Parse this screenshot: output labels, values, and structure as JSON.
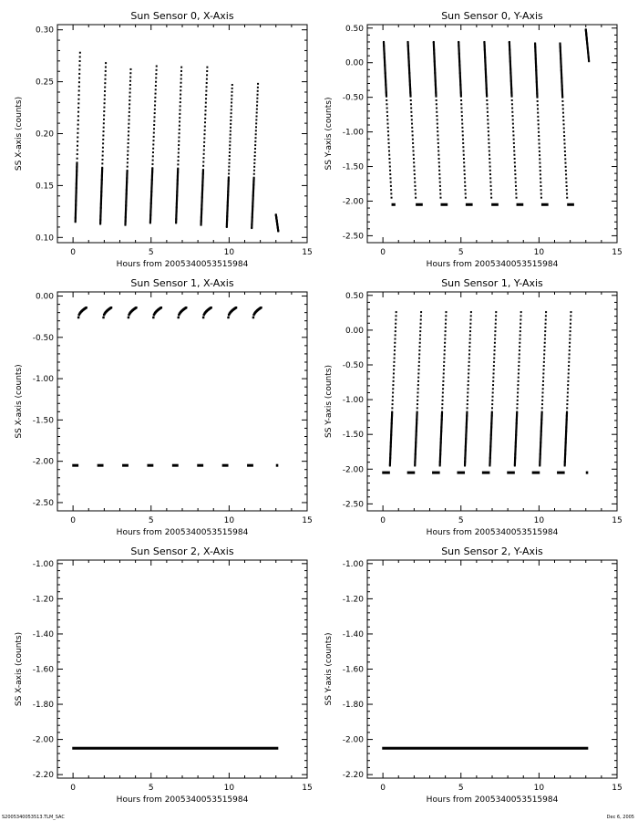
{
  "footer": {
    "left": "S2005340053513.TLM_SAC",
    "right": "Dec  6, 2005"
  },
  "colors": {
    "data": "#000000",
    "axes": "#000000",
    "background": "#ffffff"
  },
  "chart_data": [
    {
      "type": "scatter",
      "title": "Sun Sensor 0, X-Axis",
      "xlabel": "Hours from 2005340053515984",
      "ylabel": "SS X-axis (counts)",
      "xlim": [
        -1,
        15
      ],
      "ylim": [
        0.095,
        0.305
      ],
      "xticks": [
        0,
        5,
        10,
        15
      ],
      "yticks": [
        0.1,
        0.15,
        0.2,
        0.25,
        0.3
      ],
      "ytick_labels": [
        "0.10",
        "0.15",
        "0.20",
        "0.25",
        "0.30"
      ],
      "grid": false,
      "pattern": "sawtooth-rising",
      "segments": [
        {
          "x0": 0.15,
          "x1": 0.45,
          "y0": 0.115,
          "y1": 0.278
        },
        {
          "x0": 1.75,
          "x1": 2.1,
          "y0": 0.113,
          "y1": 0.268
        },
        {
          "x0": 3.35,
          "x1": 3.7,
          "y0": 0.112,
          "y1": 0.262
        },
        {
          "x0": 4.95,
          "x1": 5.35,
          "y0": 0.114,
          "y1": 0.265
        },
        {
          "x0": 6.6,
          "x1": 6.95,
          "y0": 0.114,
          "y1": 0.264
        },
        {
          "x0": 8.2,
          "x1": 8.6,
          "y0": 0.112,
          "y1": 0.264
        },
        {
          "x0": 9.85,
          "x1": 10.2,
          "y0": 0.11,
          "y1": 0.247
        },
        {
          "x0": 11.45,
          "x1": 11.85,
          "y0": 0.109,
          "y1": 0.248
        },
        {
          "x0": 13.0,
          "x1": 13.15,
          "y0": 0.122,
          "y1": 0.106
        }
      ]
    },
    {
      "type": "scatter",
      "title": "Sun Sensor 0, Y-Axis",
      "xlabel": "Hours from 2005340053515984",
      "ylabel": "SS Y-axis (counts)",
      "xlim": [
        -1,
        15
      ],
      "ylim": [
        -2.6,
        0.55
      ],
      "xticks": [
        0,
        5,
        10,
        15
      ],
      "yticks": [
        -2.5,
        -2.0,
        -1.5,
        -1.0,
        -0.5,
        0.0,
        0.5
      ],
      "ytick_labels": [
        "-2.50",
        "-2.00",
        "-1.50",
        "-1.00",
        "-0.50",
        "0.00",
        "0.50"
      ],
      "grid": false,
      "pattern": "sawtooth-falling",
      "floor": -2.05,
      "segments": [
        {
          "x0": 0.05,
          "x1": 0.55,
          "y0": 0.3,
          "y1": -1.95,
          "fx0": 0.55,
          "fx1": 0.8
        },
        {
          "x0": 1.6,
          "x1": 2.1,
          "y0": 0.3,
          "y1": -1.95,
          "fx0": 2.1,
          "fx1": 2.55
        },
        {
          "x0": 3.25,
          "x1": 3.7,
          "y0": 0.3,
          "y1": -1.95,
          "fx0": 3.7,
          "fx1": 4.15
        },
        {
          "x0": 4.85,
          "x1": 5.3,
          "y0": 0.3,
          "y1": -1.95,
          "fx0": 5.3,
          "fx1": 5.75
        },
        {
          "x0": 6.5,
          "x1": 6.95,
          "y0": 0.3,
          "y1": -1.95,
          "fx0": 6.95,
          "fx1": 7.4
        },
        {
          "x0": 8.1,
          "x1": 8.55,
          "y0": 0.3,
          "y1": -1.95,
          "fx0": 8.55,
          "fx1": 9.0
        },
        {
          "x0": 9.75,
          "x1": 10.15,
          "y0": 0.28,
          "y1": -1.95,
          "fx0": 10.15,
          "fx1": 10.6
        },
        {
          "x0": 11.35,
          "x1": 11.8,
          "y0": 0.28,
          "y1": -1.95,
          "fx0": 11.8,
          "fx1": 12.25
        },
        {
          "x0": 13.0,
          "x1": 13.2,
          "y0": 0.48,
          "y1": 0.02
        }
      ]
    },
    {
      "type": "scatter",
      "title": "Sun Sensor 1, X-Axis",
      "xlabel": "Hours from 2005340053515984",
      "ylabel": "SS X-axis (counts)",
      "xlim": [
        -1,
        15
      ],
      "ylim": [
        -2.6,
        0.05
      ],
      "xticks": [
        0,
        5,
        10,
        15
      ],
      "yticks": [
        -2.5,
        -2.0,
        -1.5,
        -1.0,
        -0.5,
        0.0
      ],
      "ytick_labels": [
        "-2.50",
        "-2.00",
        "-1.50",
        "-1.00",
        "-0.50",
        "0.00"
      ],
      "grid": false,
      "pattern": "arcs-with-floor",
      "floor": -2.05,
      "floor_segments": [
        [
          -0.05,
          0.35
        ],
        [
          1.55,
          1.95
        ],
        [
          3.15,
          3.55
        ],
        [
          4.75,
          5.15
        ],
        [
          6.35,
          6.75
        ],
        [
          7.95,
          8.35
        ],
        [
          9.55,
          9.95
        ],
        [
          11.15,
          11.55
        ],
        [
          13.0,
          13.15
        ]
      ],
      "segments": [
        {
          "x0": 0.35,
          "x1": 0.85,
          "y0": -0.26,
          "y1": -0.14
        },
        {
          "x0": 1.95,
          "x1": 2.45,
          "y0": -0.26,
          "y1": -0.14
        },
        {
          "x0": 3.55,
          "x1": 4.05,
          "y0": -0.26,
          "y1": -0.14
        },
        {
          "x0": 5.15,
          "x1": 5.65,
          "y0": -0.26,
          "y1": -0.14
        },
        {
          "x0": 6.75,
          "x1": 7.25,
          "y0": -0.26,
          "y1": -0.14
        },
        {
          "x0": 8.35,
          "x1": 8.85,
          "y0": -0.26,
          "y1": -0.14
        },
        {
          "x0": 9.95,
          "x1": 10.45,
          "y0": -0.26,
          "y1": -0.14
        },
        {
          "x0": 11.55,
          "x1": 12.05,
          "y0": -0.26,
          "y1": -0.14
        }
      ]
    },
    {
      "type": "scatter",
      "title": "Sun Sensor 1, Y-Axis",
      "xlabel": "Hours from 2005340053515984",
      "ylabel": "SS Y-axis (counts)",
      "xlim": [
        -1,
        15
      ],
      "ylim": [
        -2.6,
        0.55
      ],
      "xticks": [
        0,
        5,
        10,
        15
      ],
      "yticks": [
        -2.5,
        -2.0,
        -1.5,
        -1.0,
        -0.5,
        0.0,
        0.5
      ],
      "ytick_labels": [
        "-2.50",
        "-2.00",
        "-1.50",
        "-1.00",
        "-0.50",
        "0.00",
        "0.50"
      ],
      "grid": false,
      "pattern": "sawtooth-rising",
      "floor": -2.05,
      "floor_segments": [
        [
          -0.05,
          0.45
        ],
        [
          1.55,
          2.05
        ],
        [
          3.15,
          3.65
        ],
        [
          4.75,
          5.25
        ],
        [
          6.35,
          6.85
        ],
        [
          7.95,
          8.45
        ],
        [
          9.55,
          10.05
        ],
        [
          11.15,
          11.65
        ],
        [
          13.0,
          13.15
        ]
      ],
      "segments": [
        {
          "x0": 0.45,
          "x1": 0.85,
          "y0": -1.95,
          "y1": 0.26
        },
        {
          "x0": 2.05,
          "x1": 2.45,
          "y0": -1.95,
          "y1": 0.26
        },
        {
          "x0": 3.65,
          "x1": 4.05,
          "y0": -1.95,
          "y1": 0.26
        },
        {
          "x0": 5.25,
          "x1": 5.65,
          "y0": -1.95,
          "y1": 0.26
        },
        {
          "x0": 6.85,
          "x1": 7.25,
          "y0": -1.95,
          "y1": 0.26
        },
        {
          "x0": 8.45,
          "x1": 8.85,
          "y0": -1.95,
          "y1": 0.26
        },
        {
          "x0": 10.05,
          "x1": 10.45,
          "y0": -1.95,
          "y1": 0.26
        },
        {
          "x0": 11.65,
          "x1": 12.05,
          "y0": -1.95,
          "y1": 0.26
        }
      ]
    },
    {
      "type": "scatter",
      "title": "Sun Sensor 2, X-Axis",
      "xlabel": "Hours from 2005340053515984",
      "ylabel": "SS X-axis (counts)",
      "xlim": [
        -1,
        15
      ],
      "ylim": [
        -2.22,
        -0.98
      ],
      "xticks": [
        0,
        5,
        10,
        15
      ],
      "yticks": [
        -2.2,
        -2.0,
        -1.8,
        -1.6,
        -1.4,
        -1.2,
        -1.0
      ],
      "ytick_labels": [
        "-2.20",
        "-2.00",
        "-1.80",
        "-1.60",
        "-1.40",
        "-1.20",
        "-1.00"
      ],
      "grid": false,
      "pattern": "constant",
      "value": -2.05,
      "x_extent": [
        -0.05,
        13.15
      ]
    },
    {
      "type": "scatter",
      "title": "Sun Sensor 2, Y-Axis",
      "xlabel": "Hours from 2005340053515984",
      "ylabel": "SS Y-axis (counts)",
      "xlim": [
        -1,
        15
      ],
      "ylim": [
        -2.22,
        -0.98
      ],
      "xticks": [
        0,
        5,
        10,
        15
      ],
      "yticks": [
        -2.2,
        -2.0,
        -1.8,
        -1.6,
        -1.4,
        -1.2,
        -1.0
      ],
      "ytick_labels": [
        "-2.20",
        "-2.00",
        "-1.80",
        "-1.60",
        "-1.40",
        "-1.20",
        "-1.00"
      ],
      "grid": false,
      "pattern": "constant",
      "value": -2.05,
      "x_extent": [
        -0.05,
        13.15
      ]
    }
  ]
}
